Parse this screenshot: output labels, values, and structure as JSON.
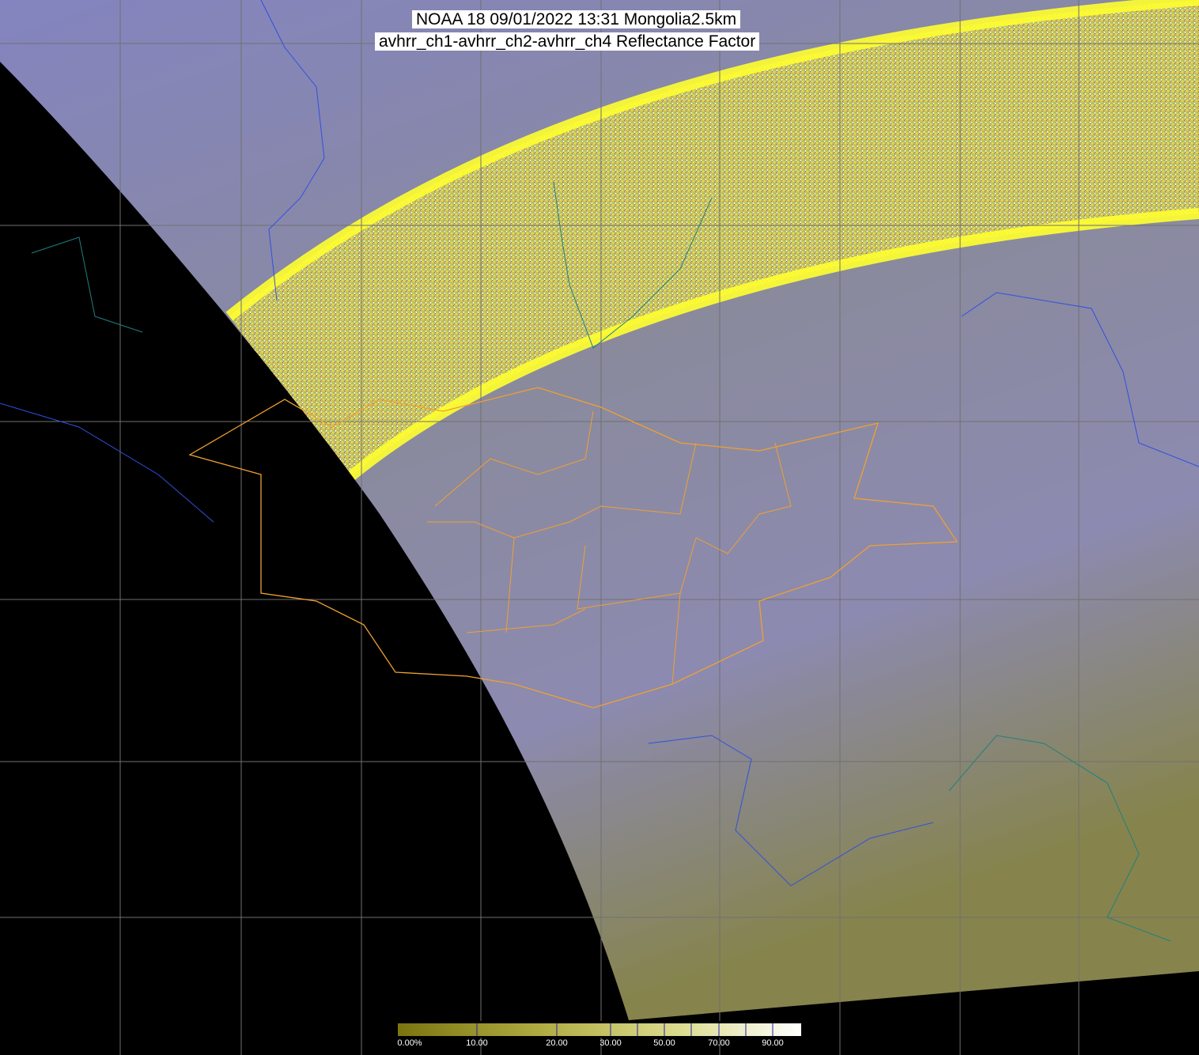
{
  "title": {
    "line1": "NOAA 18 09/01/2022 13:31 Mongolia2.5km",
    "line2": "avhrr_ch1-avhrr_ch2-avhrr_ch4 Reflectance Factor"
  },
  "colorbar": {
    "labels": [
      "0.00%",
      "10.00",
      "20.00",
      "30.00",
      "50.00",
      "70.00",
      "90.00"
    ],
    "label_values": [
      0,
      10,
      20,
      30,
      50,
      70,
      90
    ],
    "colors": [
      "#7a7510",
      "#a9a535",
      "#d6d680",
      "#ffffff"
    ]
  },
  "colors": {
    "no_data": "#000000",
    "imagery": "#8a8ab0",
    "swath_noise": "#d8d040",
    "province_borders": "#f0a030",
    "rivers": "#3050e0",
    "coastlines": "#208080",
    "grid": "#707070"
  }
}
